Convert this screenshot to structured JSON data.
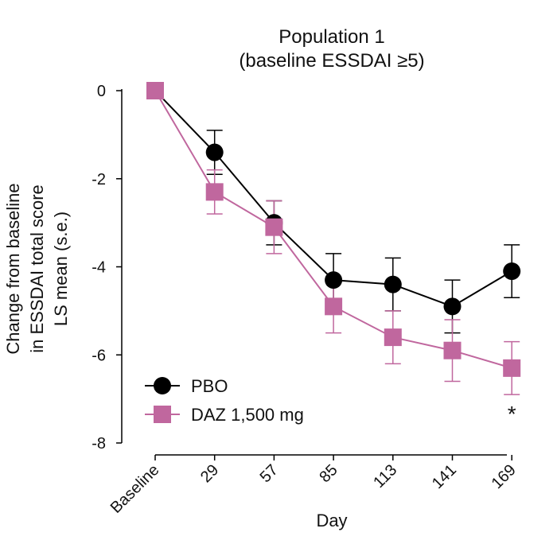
{
  "chart_data": {
    "type": "line",
    "title": [
      "Population 1",
      "(baseline ESSDAI ≥5)"
    ],
    "xlabel": "Day",
    "ylabel": [
      "Change from baseline",
      "in ESSDAI total score",
      "LS mean (s.e.)"
    ],
    "categories": [
      "Baseline",
      "29",
      "57",
      "85",
      "113",
      "141",
      "169"
    ],
    "yticks": [
      0,
      -2,
      -4,
      -6,
      -8
    ],
    "ytick_labels": [
      "0",
      "-2",
      "-4",
      "-6",
      "-8"
    ],
    "ylim": [
      -8,
      0
    ],
    "series": [
      {
        "name": "PBO",
        "marker": "circle",
        "color": "#000000",
        "values": [
          0,
          -1.4,
          -3.0,
          -4.3,
          -4.4,
          -4.9,
          -4.1
        ],
        "se": [
          0,
          0.5,
          0.5,
          0.6,
          0.6,
          0.6,
          0.6
        ]
      },
      {
        "name": "DAZ 1,500 mg",
        "marker": "square",
        "color": "#c0679e",
        "values": [
          0,
          -2.3,
          -3.1,
          -4.9,
          -5.6,
          -5.9,
          -6.3
        ],
        "se": [
          0,
          0.5,
          0.6,
          0.6,
          0.6,
          0.7,
          0.6
        ]
      }
    ],
    "annotations": [
      {
        "text": "*",
        "category": "169"
      }
    ],
    "legend_position": "bottom-left"
  }
}
